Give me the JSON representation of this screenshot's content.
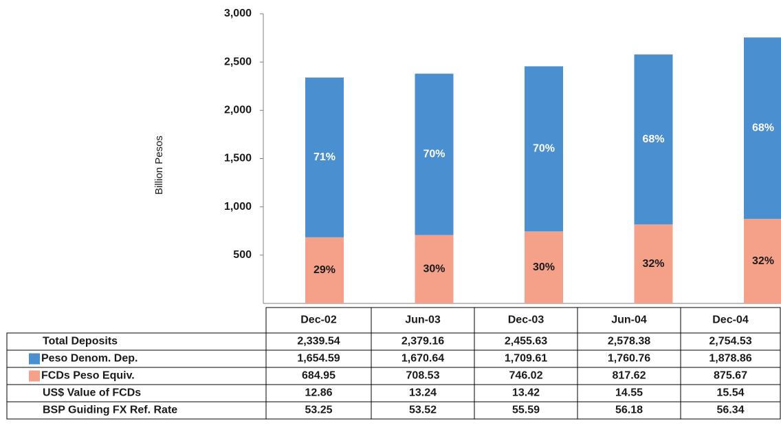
{
  "chart_data": {
    "type": "bar",
    "stacked": true,
    "y_label": "Billion Pesos",
    "categories": [
      "Dec-02",
      "Jun-03",
      "Dec-03",
      "Jun-04",
      "Dec-04"
    ],
    "ylim": [
      0,
      3000
    ],
    "yticks": [
      {
        "value": 500,
        "label": "500"
      },
      {
        "value": 1000,
        "label": "1,000"
      },
      {
        "value": 1500,
        "label": "1,500"
      },
      {
        "value": 2000,
        "label": "2,000"
      },
      {
        "value": 2500,
        "label": "2,500"
      },
      {
        "value": 3000,
        "label": "3,000"
      }
    ],
    "grid": false,
    "series": [
      {
        "name": "FCDs Peso Equiv.",
        "color": "#f5a18a",
        "label_color": "#1a1a1a",
        "values": [
          684.95,
          708.53,
          746.02,
          817.62,
          875.67
        ],
        "value_labels": [
          "684.95",
          "708.53",
          "746.02",
          "817.62",
          "875.67"
        ],
        "share": {
          "values": [
            29,
            30,
            30,
            32,
            32
          ],
          "value_labels": [
            "29%",
            "30%",
            "30%",
            "32%",
            "32%"
          ]
        }
      },
      {
        "name": "Peso Denom. Dep.",
        "color": "#4a8fd0",
        "label_color": "#ffffff",
        "values": [
          1654.59,
          1670.64,
          1709.61,
          1760.76,
          1878.86
        ],
        "value_labels": [
          "1,654.59",
          "1,670.64",
          "1,709.61",
          "1,760.76",
          "1,878.86"
        ],
        "share": {
          "values": [
            71,
            70,
            70,
            68,
            68
          ],
          "value_labels": [
            "71%",
            "70%",
            "70%",
            "68%",
            "68%"
          ]
        }
      }
    ],
    "table_rows": [
      {
        "label": "Total Deposits",
        "values": [
          2339.54,
          2379.16,
          2455.63,
          2578.38,
          2754.53
        ],
        "value_labels": [
          "2,339.54",
          "2,379.16",
          "2,455.63",
          "2,578.38",
          "2,754.53"
        ]
      },
      {
        "label": "US$ Value of FCDs",
        "values": [
          12.86,
          13.24,
          13.42,
          14.55,
          15.54
        ]
      },
      {
        "label": "BSP Guiding FX Ref. Rate",
        "values": [
          53.25,
          53.52,
          55.59,
          56.18,
          56.34
        ]
      }
    ]
  }
}
